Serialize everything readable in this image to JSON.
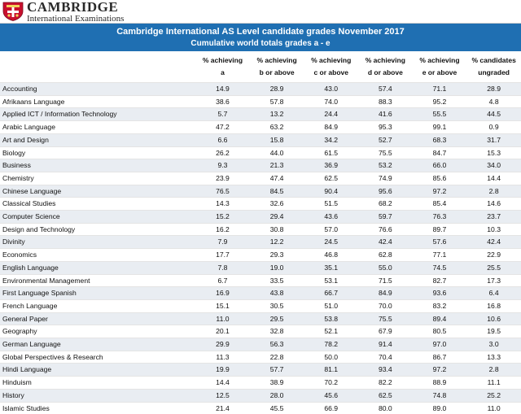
{
  "brand": {
    "name": "CAMBRIDGE",
    "subtitle": "International Examinations"
  },
  "banner": {
    "title": "Cambridge International AS Level candidate grades November 2017",
    "subtitle": "Cumulative world totals grades a - e"
  },
  "columns": [
    {
      "line1": "% achieving",
      "line2": "a"
    },
    {
      "line1": "% achieving",
      "line2": "b or above"
    },
    {
      "line1": "% achieving",
      "line2": "c or above"
    },
    {
      "line1": "% achieving",
      "line2": "d or above"
    },
    {
      "line1": "% achieving",
      "line2": "e or above"
    },
    {
      "line1": "% candidates",
      "line2": "ungraded"
    }
  ],
  "rows": [
    {
      "subject": "Accounting",
      "values": [
        "14.9",
        "28.9",
        "43.0",
        "57.4",
        "71.1",
        "28.9"
      ]
    },
    {
      "subject": "Afrikaans Language",
      "values": [
        "38.6",
        "57.8",
        "74.0",
        "88.3",
        "95.2",
        "4.8"
      ]
    },
    {
      "subject": "Applied ICT / Information Technology",
      "values": [
        "5.7",
        "13.2",
        "24.4",
        "41.6",
        "55.5",
        "44.5"
      ]
    },
    {
      "subject": "Arabic Language",
      "values": [
        "47.2",
        "63.2",
        "84.9",
        "95.3",
        "99.1",
        "0.9"
      ]
    },
    {
      "subject": "Art and Design",
      "values": [
        "6.6",
        "15.8",
        "34.2",
        "52.7",
        "68.3",
        "31.7"
      ]
    },
    {
      "subject": "Biology",
      "values": [
        "26.2",
        "44.0",
        "61.5",
        "75.5",
        "84.7",
        "15.3"
      ]
    },
    {
      "subject": "Business",
      "values": [
        "9.3",
        "21.3",
        "36.9",
        "53.2",
        "66.0",
        "34.0"
      ]
    },
    {
      "subject": "Chemistry",
      "values": [
        "23.9",
        "47.4",
        "62.5",
        "74.9",
        "85.6",
        "14.4"
      ]
    },
    {
      "subject": "Chinese Language",
      "values": [
        "76.5",
        "84.5",
        "90.4",
        "95.6",
        "97.2",
        "2.8"
      ]
    },
    {
      "subject": "Classical Studies",
      "values": [
        "14.3",
        "32.6",
        "51.5",
        "68.2",
        "85.4",
        "14.6"
      ]
    },
    {
      "subject": "Computer Science",
      "values": [
        "15.2",
        "29.4",
        "43.6",
        "59.7",
        "76.3",
        "23.7"
      ]
    },
    {
      "subject": "Design and Technology",
      "values": [
        "16.2",
        "30.8",
        "57.0",
        "76.6",
        "89.7",
        "10.3"
      ]
    },
    {
      "subject": "Divinity",
      "values": [
        "7.9",
        "12.2",
        "24.5",
        "42.4",
        "57.6",
        "42.4"
      ]
    },
    {
      "subject": "Economics",
      "values": [
        "17.7",
        "29.3",
        "46.8",
        "62.8",
        "77.1",
        "22.9"
      ]
    },
    {
      "subject": "English Language",
      "values": [
        "7.8",
        "19.0",
        "35.1",
        "55.0",
        "74.5",
        "25.5"
      ]
    },
    {
      "subject": "Environmental Management",
      "values": [
        "6.7",
        "33.5",
        "53.1",
        "71.5",
        "82.7",
        "17.3"
      ]
    },
    {
      "subject": "First Language Spanish",
      "values": [
        "16.9",
        "43.8",
        "66.7",
        "84.9",
        "93.6",
        "6.4"
      ]
    },
    {
      "subject": "French Language",
      "values": [
        "15.1",
        "30.5",
        "51.0",
        "70.0",
        "83.2",
        "16.8"
      ]
    },
    {
      "subject": "General Paper",
      "values": [
        "11.0",
        "29.5",
        "53.8",
        "75.5",
        "89.4",
        "10.6"
      ]
    },
    {
      "subject": "Geography",
      "values": [
        "20.1",
        "32.8",
        "52.1",
        "67.9",
        "80.5",
        "19.5"
      ]
    },
    {
      "subject": "German Language",
      "values": [
        "29.9",
        "56.3",
        "78.2",
        "91.4",
        "97.0",
        "3.0"
      ]
    },
    {
      "subject": "Global Perspectives & Research",
      "values": [
        "11.3",
        "22.8",
        "50.0",
        "70.4",
        "86.7",
        "13.3"
      ]
    },
    {
      "subject": "Hindi Language",
      "values": [
        "19.9",
        "57.7",
        "81.1",
        "93.4",
        "97.2",
        "2.8"
      ]
    },
    {
      "subject": "Hinduism",
      "values": [
        "14.4",
        "38.9",
        "70.2",
        "82.2",
        "88.9",
        "11.1"
      ]
    },
    {
      "subject": "History",
      "values": [
        "12.5",
        "28.0",
        "45.6",
        "62.5",
        "74.8",
        "25.2"
      ]
    },
    {
      "subject": "Islamic Studies",
      "values": [
        "21.4",
        "45.5",
        "66.9",
        "80.0",
        "89.0",
        "11.0"
      ]
    }
  ]
}
